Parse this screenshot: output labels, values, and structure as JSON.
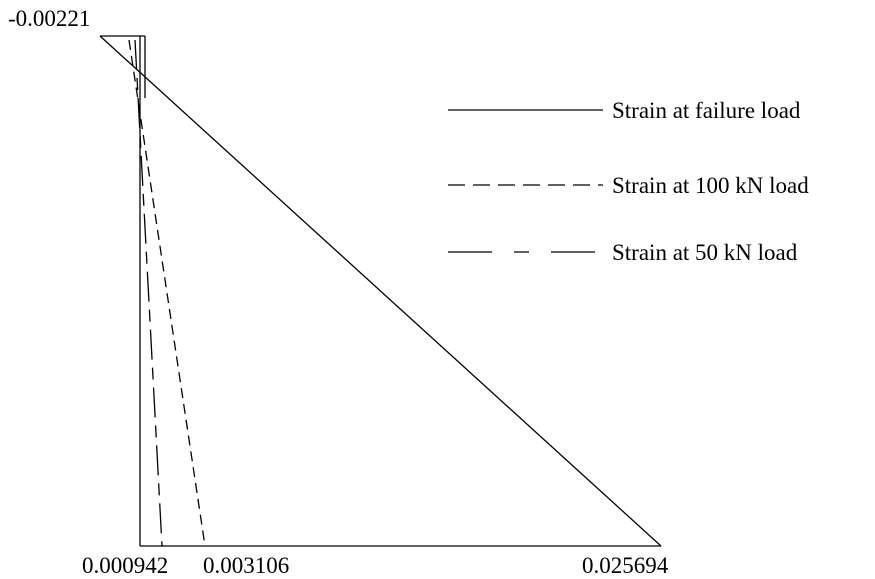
{
  "diagram": {
    "line_color": "#000000",
    "background": "#ffffff",
    "top_value_label": "-0.00221",
    "bottom_value_labels": [
      "0.000942",
      "0.003106",
      "0.025694"
    ],
    "legend": [
      {
        "label": "Strain at failure load",
        "style": "solid"
      },
      {
        "label": "Strain at 100 kN load",
        "style": "short-dash"
      },
      {
        "label": "Strain at 50 kN load",
        "style": "long-dash"
      }
    ]
  }
}
